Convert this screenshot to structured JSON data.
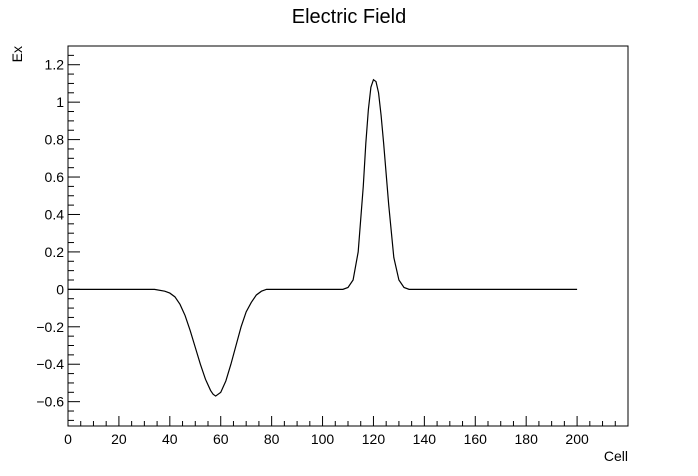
{
  "chart_data": {
    "type": "line",
    "title": "Electric Field",
    "xlabel": "Cell",
    "ylabel": "Ex",
    "xlim": [
      0,
      220
    ],
    "ylim": [
      -0.73,
      1.3
    ],
    "x_ticks": [
      "0",
      "20",
      "40",
      "60",
      "80",
      "100",
      "120",
      "140",
      "160",
      "180",
      "200"
    ],
    "y_ticks": [
      "−0.6",
      "−0.4",
      "−0.2",
      "0",
      "0.2",
      "0.4",
      "0.6",
      "0.8",
      "1",
      "1.2"
    ],
    "grid": false,
    "line_color": "#000000",
    "series": [
      {
        "x": [
          0,
          10,
          20,
          30,
          34,
          38,
          40,
          42,
          44,
          46,
          48,
          50,
          52,
          54,
          56,
          57,
          58,
          60,
          62,
          64,
          66,
          68,
          70,
          72,
          74,
          76,
          78,
          80,
          85,
          90,
          100,
          105,
          108,
          110,
          112,
          114,
          116,
          117,
          118,
          119,
          120,
          121,
          122,
          123,
          124,
          126,
          128,
          130,
          132,
          134,
          140,
          150,
          160,
          170,
          180,
          190,
          200
        ],
        "y": [
          0,
          0,
          0,
          0,
          0,
          -0.01,
          -0.02,
          -0.04,
          -0.08,
          -0.14,
          -0.22,
          -0.31,
          -0.4,
          -0.48,
          -0.54,
          -0.56,
          -0.57,
          -0.55,
          -0.49,
          -0.4,
          -0.3,
          -0.2,
          -0.12,
          -0.07,
          -0.03,
          -0.01,
          0,
          0,
          0,
          0,
          0,
          0,
          0,
          0.01,
          0.05,
          0.2,
          0.55,
          0.78,
          0.96,
          1.08,
          1.12,
          1.11,
          1.05,
          0.93,
          0.78,
          0.45,
          0.17,
          0.05,
          0.01,
          0,
          0,
          0,
          0,
          0,
          0,
          0,
          0
        ]
      }
    ]
  }
}
